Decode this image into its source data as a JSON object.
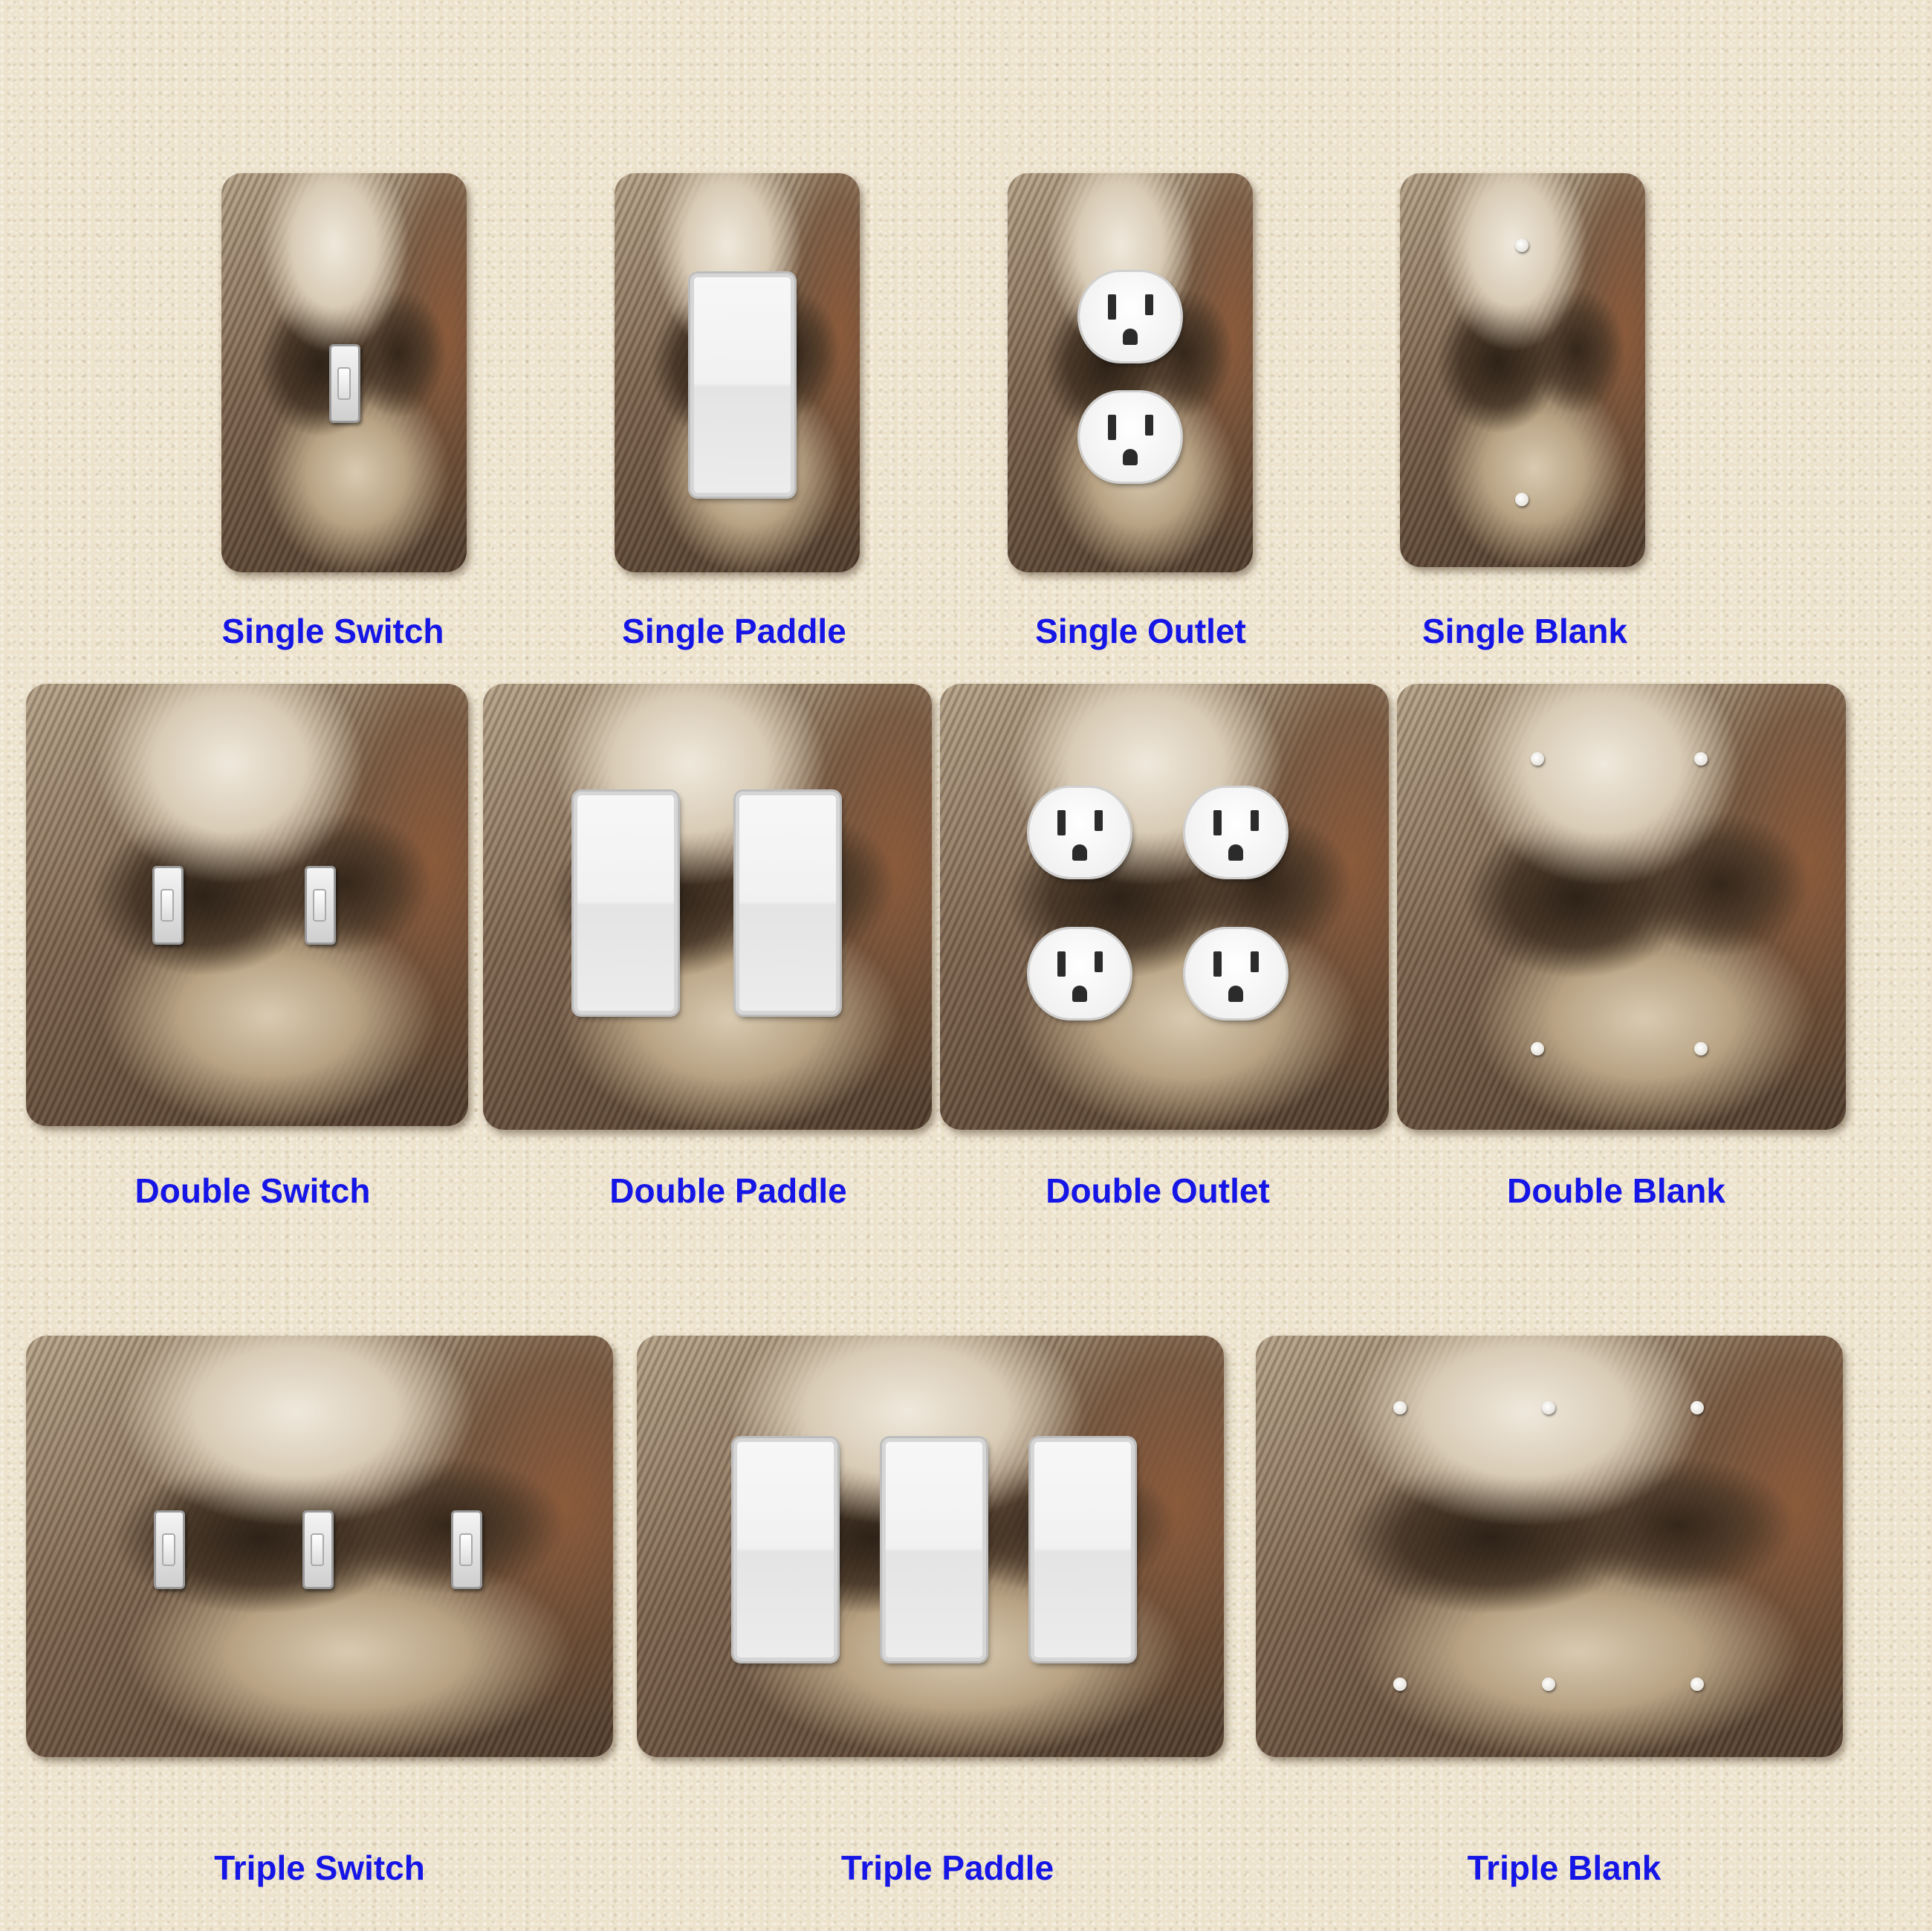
{
  "captions": {
    "single_switch": "Single Switch",
    "single_paddle": "Single Paddle",
    "single_outlet": "Single Outlet",
    "single_blank": "Single Blank",
    "double_switch": "Double Switch",
    "double_paddle": "Double Paddle",
    "double_outlet": "Double Outlet",
    "double_blank": "Double Blank",
    "triple_switch": "Triple Switch",
    "triple_paddle": "Triple Paddle",
    "triple_blank": "Triple Blank"
  },
  "colors": {
    "wall_background": "#ede3cd",
    "caption_text": "#1515e6",
    "fixture_white": "#f4f4f4"
  },
  "icons": {
    "toggle": "toggle-switch-icon",
    "paddle": "rocker-paddle-icon",
    "outlet": "duplex-outlet-icon",
    "hole": "screw-hole-icon"
  }
}
